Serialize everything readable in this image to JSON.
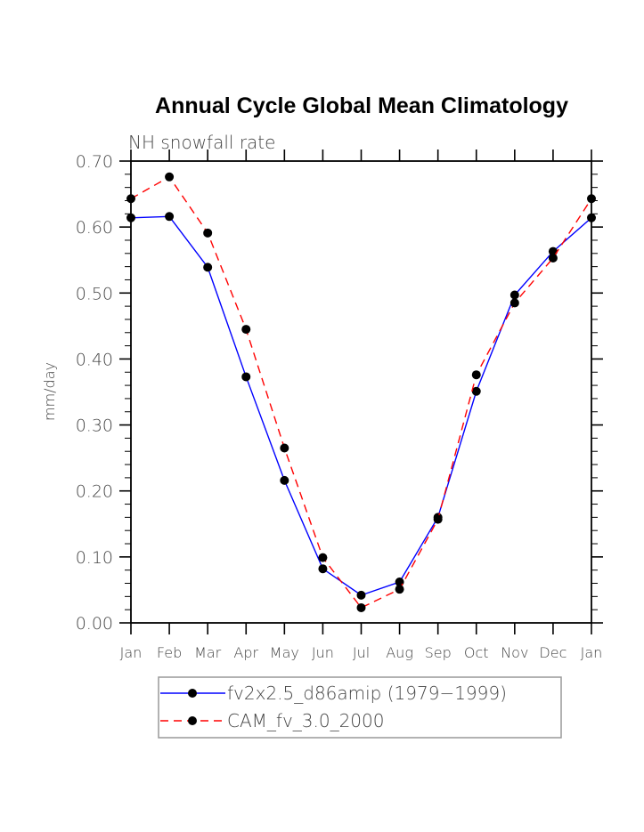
{
  "chart_data": {
    "type": "line",
    "title": "Annual Cycle Global Mean Climatology",
    "subtitle": "NH snowfall rate",
    "xlabel": "",
    "ylabel": "mm/day",
    "categories": [
      "Jan",
      "Feb",
      "Mar",
      "Apr",
      "May",
      "Jun",
      "Jul",
      "Aug",
      "Sep",
      "Oct",
      "Nov",
      "Dec",
      "Jan"
    ],
    "ylim": [
      0.0,
      0.7
    ],
    "yticks": [
      0.0,
      0.1,
      0.2,
      0.3,
      0.4,
      0.5,
      0.6,
      0.7
    ],
    "ytick_labels": [
      "0.00",
      "0.10",
      "0.20",
      "0.30",
      "0.40",
      "0.50",
      "0.60",
      "0.70"
    ],
    "yminor_step": 0.02,
    "grid": false,
    "legend_position": "bottom",
    "series": [
      {
        "name": "fv2x2.5_d86amip (1979−1999)",
        "color": "#0000ff",
        "style": "solid",
        "marker": "circle",
        "values": [
          0.614,
          0.616,
          0.539,
          0.373,
          0.216,
          0.082,
          0.042,
          0.062,
          0.16,
          0.351,
          0.497,
          0.563,
          0.614
        ]
      },
      {
        "name": "CAM_fv_3.0_2000",
        "color": "#ff0000",
        "style": "dashed",
        "marker": "circle",
        "values": [
          0.643,
          0.676,
          0.591,
          0.445,
          0.265,
          0.099,
          0.023,
          0.051,
          0.157,
          0.376,
          0.485,
          0.553,
          0.643
        ]
      }
    ]
  }
}
